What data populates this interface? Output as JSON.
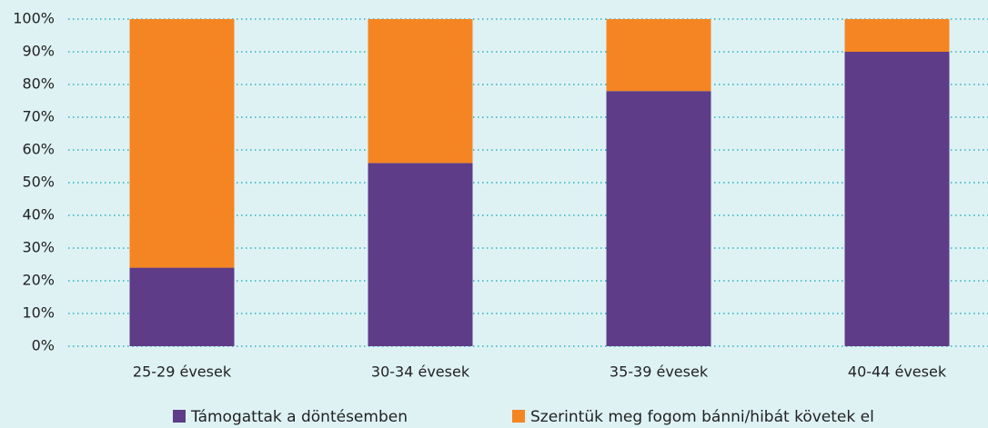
{
  "chart_data": {
    "type": "bar",
    "stacked": true,
    "categories": [
      "25-29 évesek",
      "30-34 évesek",
      "35-39 évesek",
      "40-44 évesek"
    ],
    "series": [
      {
        "name": "Támogattak a döntésemben",
        "color": "#5e3c87",
        "values": [
          24,
          56,
          78,
          90
        ]
      },
      {
        "name": "Szerintük meg fogom bánni/hibát követek el",
        "color": "#f58522",
        "values": [
          76,
          44,
          22,
          10
        ]
      }
    ],
    "ylim": [
      0,
      100
    ],
    "yticks": [
      {
        "value": 0,
        "label": "0%"
      },
      {
        "value": 10,
        "label": "10%"
      },
      {
        "value": 20,
        "label": "20%"
      },
      {
        "value": 30,
        "label": "30%"
      },
      {
        "value": 40,
        "label": "40%"
      },
      {
        "value": 50,
        "label": "50%"
      },
      {
        "value": 60,
        "label": "60%"
      },
      {
        "value": 70,
        "label": "70%"
      },
      {
        "value": 80,
        "label": "80%"
      },
      {
        "value": 90,
        "label": "90%"
      },
      {
        "value": 100,
        "label": "100%"
      }
    ],
    "grid": true,
    "legend": "bottom"
  }
}
